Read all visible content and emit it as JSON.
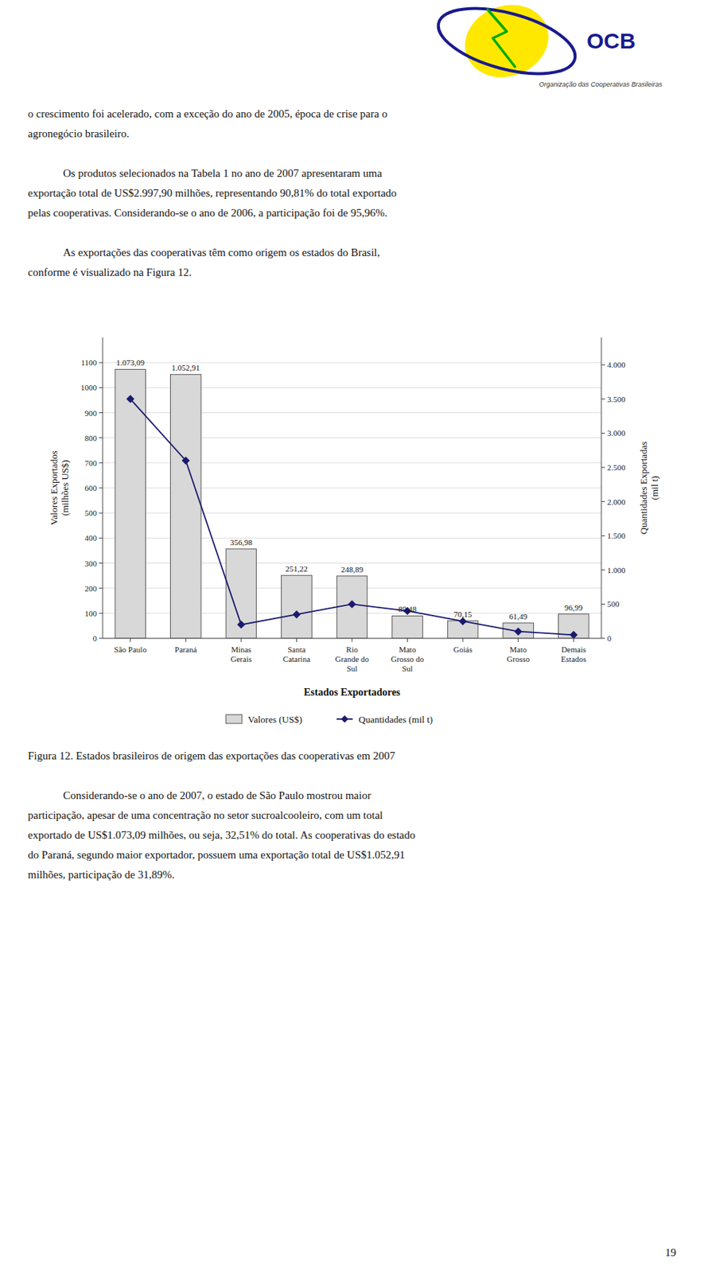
{
  "logo": {
    "title": "OCB",
    "subtitle": "Organização das Cooperativas Brasileiras"
  },
  "text_before": [
    [
      "o crescimento foi acelerado, com a exceção do ano de 2005, época de crise para o",
      "agronegócio brasileiro."
    ],
    [
      "Os produtos selecionados na Tabela 1 no ano de 2007 apresentaram uma",
      "exportação total de US$2.997,90 milhões, representando 90,81% do total exportado",
      "pelas cooperativas. Considerando-se o ano de 2006, a participação foi de 95,96%."
    ],
    [
      "As exportações das cooperativas têm como origem os estados do Brasil,",
      "conforme é visualizado na Figura 12."
    ]
  ],
  "caption": "Figura 12. Estados brasileiros de origem das exportações das cooperativas em 2007",
  "text_after": [
    [
      "Considerando-se o ano de 2007, o estado de São Paulo mostrou maior",
      "participação, apesar de uma concentração no setor sucroalcooleiro, com um total",
      "exportado de US$1.073,09 milhões, ou seja, 32,51% do total. As cooperativas do estado",
      "do Paraná, segundo maior exportador, possuem uma exportação total de US$1.052,91",
      "milhões, participação de 31,89%."
    ]
  ],
  "page_number": "19",
  "chart_data": {
    "type": "bar",
    "categories": [
      "São Paulo",
      "Paraná",
      "Minas\nGerais",
      "Santa\nCatarina",
      "Rio\nGrande do\nSul",
      "Mato\nGrosso do\nSul",
      "Goiás",
      "Mato\nGrosso",
      "Demais\nEstados"
    ],
    "series": [
      {
        "name": "Valores (US$)",
        "type": "bar",
        "color": "#d8d8d8",
        "data_labels": true,
        "values": [
          1073.09,
          1052.91,
          356.98,
          251.22,
          248.89,
          89.48,
          70.15,
          61.49,
          96.99
        ],
        "value_labels": [
          "1.073,09",
          "1.052,91",
          "356,98",
          "251,22",
          "248,89",
          "89,48",
          "70,15",
          "61,49",
          "96,99"
        ]
      },
      {
        "name": "Quantidades (mil t)",
        "type": "line",
        "axis": "y2",
        "color": "#1a1a6e",
        "marker": "diamond",
        "values": [
          3500,
          2600,
          200,
          350,
          500,
          400,
          250,
          100,
          50
        ]
      }
    ],
    "xlabel": "Estados Exportadores",
    "ylabel": "Valores Exportados\n(milhões US$)",
    "y2label": "Quantidades Exportadas\n(mil t)",
    "ylim": [
      0,
      1200
    ],
    "yticks": [
      0,
      100,
      200,
      300,
      400,
      500,
      600,
      700,
      800,
      900,
      1000,
      1100
    ],
    "y2lim": [
      0,
      4400
    ],
    "y2ticks": [
      0,
      500,
      {
        "value": 1000,
        "label": "1.000"
      },
      {
        "value": 1500,
        "label": "1.500"
      },
      {
        "value": 2000,
        "label": "2.000"
      },
      {
        "value": 2500,
        "label": "2.500"
      },
      {
        "value": 3000,
        "label": "3.000"
      },
      {
        "value": 3500,
        "label": "3.500"
      },
      {
        "value": 4000,
        "label": "4.000"
      }
    ],
    "grid": true,
    "legend": "bottom"
  }
}
